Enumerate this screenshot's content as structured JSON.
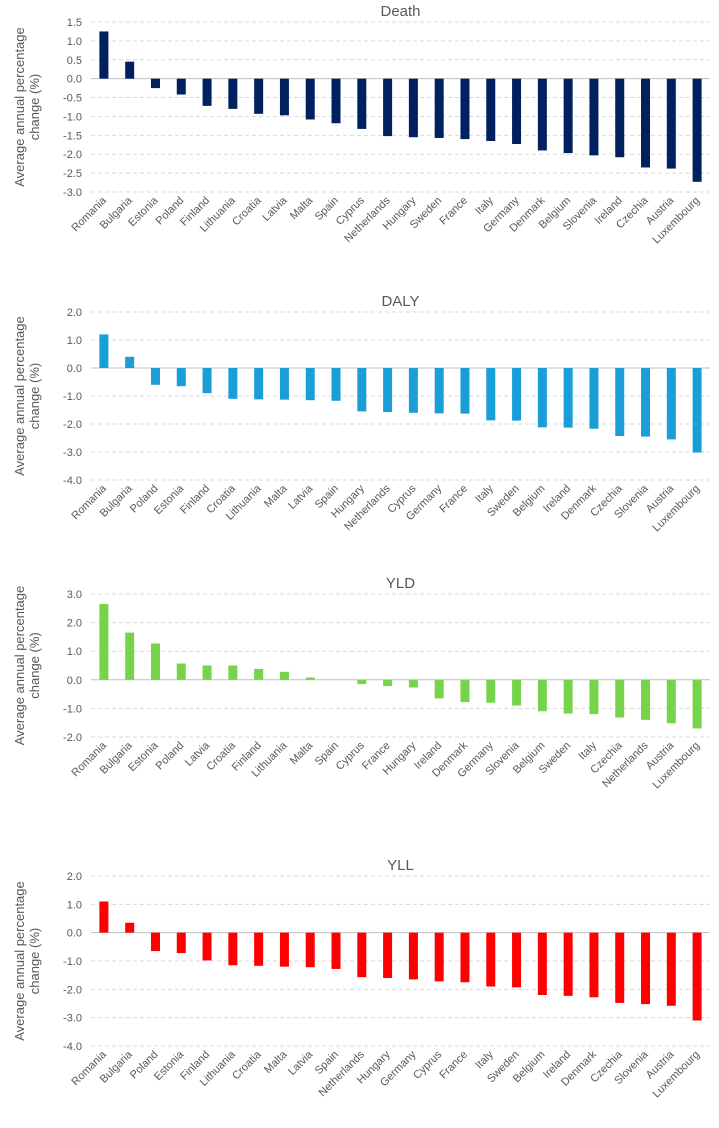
{
  "chart_data": [
    {
      "type": "bar",
      "title": "Death",
      "ylabel": "Average annual percentage change (%)",
      "ylabel_lines": [
        "Average annual percentage",
        "change (%)"
      ],
      "color": "#002060",
      "ylim": [
        -3.0,
        1.5
      ],
      "yticks": [
        "1.5",
        "1.0",
        "0.5",
        "0.0",
        "-0.5",
        "-1.0",
        "-1.5",
        "-2.0",
        "-2.5",
        "-3.0"
      ],
      "ytick_values": [
        1.5,
        1.0,
        0.5,
        0.0,
        -0.5,
        -1.0,
        -1.5,
        -2.0,
        -2.5,
        -3.0
      ],
      "grid": true,
      "categories": [
        "Romania",
        "Bulgaria",
        "Estonia",
        "Poland",
        "Finland",
        "Lithuania",
        "Croatia",
        "Latvia",
        "Malta",
        "Spain",
        "Cyprus",
        "Netherlands",
        "Hungary",
        "Sweden",
        "France",
        "Italy",
        "Germany",
        "Denmark",
        "Belgium",
        "Slovenia",
        "Ireland",
        "Czechia",
        "Austria",
        "Luxembourg"
      ],
      "values": [
        1.25,
        0.45,
        -0.25,
        -0.42,
        -0.72,
        -0.8,
        -0.93,
        -0.97,
        -1.08,
        -1.18,
        -1.33,
        -1.52,
        -1.55,
        -1.57,
        -1.6,
        -1.65,
        -1.73,
        -1.9,
        -1.97,
        -2.03,
        -2.08,
        -2.35,
        -2.38,
        -2.73
      ]
    },
    {
      "type": "bar",
      "title": "DALY",
      "ylabel": "Average annual percentage change (%)",
      "ylabel_lines": [
        "Average annual percentage",
        "change (%)"
      ],
      "color": "#1A9ED8",
      "ylim": [
        -4.0,
        2.0
      ],
      "yticks": [
        "2.0",
        "1.0",
        "0.0",
        "-1.0",
        "-2.0",
        "-3.0",
        "-4.0"
      ],
      "ytick_values": [
        2.0,
        1.0,
        0.0,
        -1.0,
        -2.0,
        -3.0,
        -4.0
      ],
      "grid": true,
      "categories": [
        "Romania",
        "Bulgaria",
        "Poland",
        "Estonia",
        "Finland",
        "Croatia",
        "Lithuania",
        "Malta",
        "Latvia",
        "Spain",
        "Hungary",
        "Netherlands",
        "Cyprus",
        "Germany",
        "France",
        "Italy",
        "Sweden",
        "Belgium",
        "Ireland",
        "Denmark",
        "Czechia",
        "Slovenia",
        "Austria",
        "Luxembourg"
      ],
      "values": [
        1.2,
        0.4,
        -0.6,
        -0.65,
        -0.9,
        -1.1,
        -1.12,
        -1.13,
        -1.15,
        -1.17,
        -1.55,
        -1.57,
        -1.6,
        -1.62,
        -1.63,
        -1.87,
        -1.88,
        -2.12,
        -2.13,
        -2.17,
        -2.43,
        -2.45,
        -2.55,
        -3.02
      ]
    },
    {
      "type": "bar",
      "title": "YLD",
      "ylabel": "Average annual percentage change (%)",
      "ylabel_lines": [
        "Average annual percentage",
        "change (%)"
      ],
      "color": "#76D44A",
      "ylim": [
        -2.0,
        3.0
      ],
      "yticks": [
        "3.0",
        "2.0",
        "1.0",
        "0.0",
        "-1.0",
        "-2.0"
      ],
      "ytick_values": [
        3.0,
        2.0,
        1.0,
        0.0,
        -1.0,
        -2.0
      ],
      "grid": true,
      "categories": [
        "Romania",
        "Bulgaria",
        "Estonia",
        "Poland",
        "Latvia",
        "Croatia",
        "Finland",
        "Lithuania",
        "Malta",
        "Spain",
        "Cyprus",
        "France",
        "Hungary",
        "Ireland",
        "Denmark",
        "Germany",
        "Slovenia",
        "Belgium",
        "Sweden",
        "Italy",
        "Czechia",
        "Netherlands",
        "Austria",
        "Luxembourg"
      ],
      "values": [
        2.65,
        1.65,
        1.27,
        0.57,
        0.5,
        0.5,
        0.38,
        0.28,
        0.08,
        0.0,
        -0.15,
        -0.22,
        -0.27,
        -0.65,
        -0.78,
        -0.8,
        -0.9,
        -1.1,
        -1.18,
        -1.2,
        -1.32,
        -1.4,
        -1.52,
        -1.7
      ]
    },
    {
      "type": "bar",
      "title": "YLL",
      "ylabel": "Average annual percentage change (%)",
      "ylabel_lines": [
        "Average annual percentage",
        "change (%)"
      ],
      "color": "#FF0000",
      "ylim": [
        -4.0,
        2.0
      ],
      "yticks": [
        "2.0",
        "1.0",
        "0.0",
        "-1.0",
        "-2.0",
        "-3.0",
        "-4.0"
      ],
      "ytick_values": [
        2.0,
        1.0,
        0.0,
        -1.0,
        -2.0,
        -3.0,
        -4.0
      ],
      "grid": true,
      "categories": [
        "Romania",
        "Bulgaria",
        "Poland",
        "Estonia",
        "Finland",
        "Lithuania",
        "Croatia",
        "Malta",
        "Latvia",
        "Spain",
        "Netherlands",
        "Hungary",
        "Germany",
        "Cyprus",
        "France",
        "Italy",
        "Sweden",
        "Belgium",
        "Ireland",
        "Denmark",
        "Czechia",
        "Slovenia",
        "Austria",
        "Luxembourg"
      ],
      "values": [
        1.1,
        0.35,
        -0.65,
        -0.72,
        -0.98,
        -1.15,
        -1.17,
        -1.2,
        -1.22,
        -1.28,
        -1.57,
        -1.6,
        -1.65,
        -1.72,
        -1.75,
        -1.9,
        -1.93,
        -2.2,
        -2.23,
        -2.28,
        -2.48,
        -2.52,
        -2.58,
        -3.1
      ]
    }
  ]
}
